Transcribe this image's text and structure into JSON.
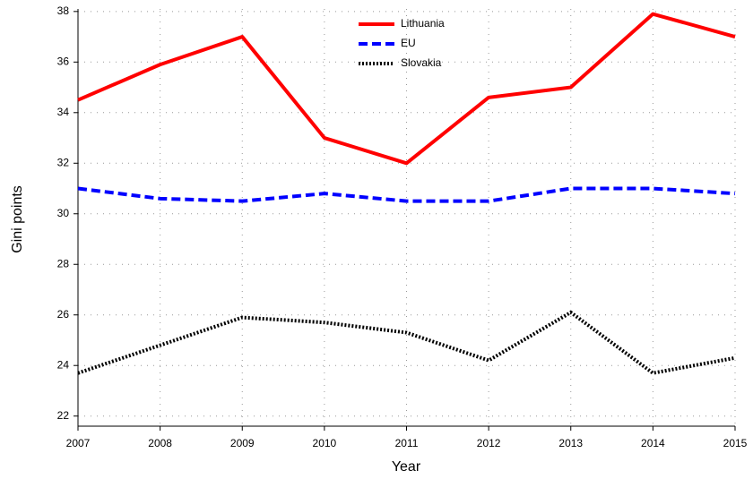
{
  "chart_data": {
    "type": "line",
    "x_label": "Year",
    "y_label": "Gini points",
    "x": [
      2007,
      2008,
      2009,
      2010,
      2011,
      2012,
      2013,
      2014,
      2015
    ],
    "series": [
      {
        "name": "Lithuania",
        "color": "#ff0000",
        "dash": "solid",
        "values": [
          34.5,
          35.9,
          37.0,
          33.0,
          32.0,
          34.6,
          35.0,
          37.9,
          37.0
        ]
      },
      {
        "name": "EU",
        "color": "#0000ff",
        "dash": "dashed",
        "values": [
          31.0,
          30.6,
          30.5,
          30.8,
          30.5,
          30.5,
          31.0,
          31.0,
          30.8
        ]
      },
      {
        "name": "Slovakia",
        "color": "#000000",
        "dash": "dotted",
        "values": [
          23.7,
          24.8,
          25.9,
          25.7,
          25.3,
          24.2,
          26.1,
          23.7,
          24.3
        ]
      }
    ],
    "xlim": [
      2007,
      2015
    ],
    "xticks": [
      2007,
      2008,
      2009,
      2010,
      2011,
      2012,
      2013,
      2014,
      2015
    ],
    "ylim": [
      21.6,
      38.1
    ],
    "yticks": [
      22,
      24,
      26,
      28,
      30,
      32,
      34,
      36,
      38
    ],
    "grid": true,
    "legend": "top"
  }
}
